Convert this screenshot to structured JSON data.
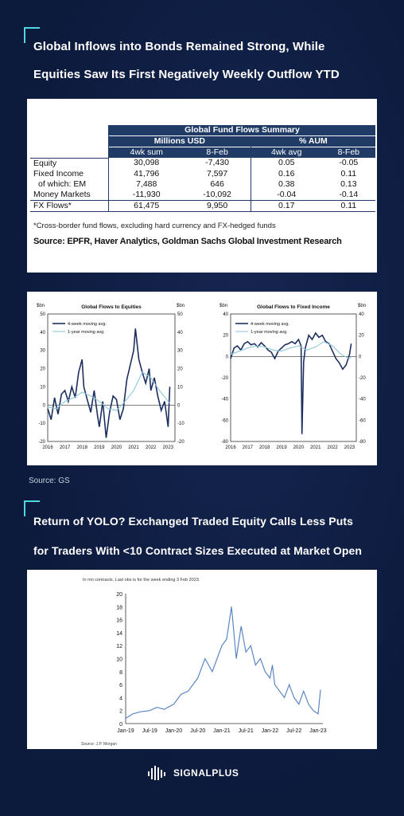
{
  "headline1": {
    "line1": "Global Inflows into Bonds Remained Strong, While",
    "line2": "Equities Saw Its First Negatively Weekly Outflow YTD"
  },
  "table": {
    "title": "Global Fund Flows Summary",
    "group1": "Millions USD",
    "group2": "% AUM",
    "cols": [
      "4wk sum",
      "8-Feb",
      "4wk avg",
      "8-Feb"
    ],
    "rows": [
      {
        "label": "Equity",
        "v": [
          "30,098",
          "-7,430",
          "0.05",
          "-0.05"
        ]
      },
      {
        "label": "Fixed Income",
        "v": [
          "41,796",
          "7,597",
          "0.16",
          "0.11"
        ]
      },
      {
        "label": "of which: EM",
        "v": [
          "7,488",
          "646",
          "0.38",
          "0.13"
        ]
      },
      {
        "label": "Money Markets",
        "v": [
          "-11,930",
          "-10,092",
          "-0.04",
          "-0.14"
        ]
      },
      {
        "label": "FX Flows*",
        "v": [
          "61,475",
          "9,950",
          "0.17",
          "0.11"
        ]
      }
    ],
    "footnote": "*Cross-border fund flows, excluding hard currency and FX-hedged funds",
    "source": "Source: EPFR, Haver Analytics, Goldman Sachs Global Investment Research"
  },
  "source_gs": "Source: GS",
  "headline2": {
    "line1": "Return of YOLO?  Exchanged Traded Equity Calls Less Puts",
    "line2": "for Traders With <10 Contract Sizes Executed at Market Open"
  },
  "logo_text": "SIGNALPLUS",
  "colors": {
    "dark_series": "#1c2f5e",
    "light_series": "#8fc8dc",
    "line_series": "#5b86c4",
    "table_header": "#1f3b66",
    "accent": "#4fd6e0"
  },
  "chart_data": [
    {
      "type": "line",
      "title": "Global Flows to Equities",
      "ylabel_left": "$bn",
      "ylabel_right": "$bn",
      "ylim": [
        -20,
        50
      ],
      "yticks": [
        -20,
        -10,
        0,
        10,
        20,
        30,
        40,
        50
      ],
      "xticks": [
        "2016",
        "2017",
        "2018",
        "2019",
        "2020",
        "2021",
        "2022",
        "2023"
      ],
      "legend": "top-left",
      "series": [
        {
          "name": "4-week moving avg.",
          "x": [
            2016.0,
            2016.2,
            2016.4,
            2016.6,
            2016.8,
            2017.0,
            2017.2,
            2017.4,
            2017.6,
            2017.8,
            2018.0,
            2018.1,
            2018.3,
            2018.5,
            2018.7,
            2018.9,
            2019.0,
            2019.2,
            2019.4,
            2019.6,
            2019.8,
            2020.0,
            2020.2,
            2020.4,
            2020.6,
            2020.8,
            2021.0,
            2021.1,
            2021.3,
            2021.5,
            2021.7,
            2021.9,
            2022.0,
            2022.2,
            2022.4,
            2022.6,
            2022.8,
            2023.0,
            2023.1
          ],
          "y": [
            -2,
            -8,
            4,
            -5,
            6,
            8,
            2,
            10,
            4,
            18,
            25,
            10,
            3,
            -4,
            8,
            -6,
            -12,
            2,
            -18,
            -4,
            5,
            3,
            -8,
            -2,
            14,
            22,
            30,
            42,
            25,
            18,
            12,
            20,
            8,
            15,
            5,
            -3,
            2,
            -12,
            10
          ]
        },
        {
          "name": "1-year moving avg.",
          "x": [
            2016.0,
            2016.5,
            2017.0,
            2017.5,
            2018.0,
            2018.5,
            2019.0,
            2019.5,
            2020.0,
            2020.5,
            2021.0,
            2021.5,
            2022.0,
            2022.5,
            2023.0,
            2023.1
          ],
          "y": [
            -1,
            -2,
            2,
            4,
            7,
            5,
            2,
            -2,
            -3,
            2,
            8,
            18,
            15,
            8,
            2,
            1
          ]
        }
      ]
    },
    {
      "type": "line",
      "title": "Global Flows to Fixed Income",
      "ylabel_left": "$bn",
      "ylabel_right": "$bn",
      "ylim": [
        -80,
        40
      ],
      "yticks": [
        -80,
        -60,
        -40,
        -20,
        0,
        20,
        40
      ],
      "xticks": [
        "2016",
        "2017",
        "2018",
        "2019",
        "2020",
        "2021",
        "2022",
        "2023"
      ],
      "legend": "top-left",
      "series": [
        {
          "name": "4-week moving avg.",
          "x": [
            2016.0,
            2016.2,
            2016.4,
            2016.6,
            2016.8,
            2017.0,
            2017.2,
            2017.4,
            2017.6,
            2017.8,
            2018.0,
            2018.2,
            2018.4,
            2018.6,
            2018.8,
            2019.0,
            2019.2,
            2019.4,
            2019.6,
            2019.8,
            2020.0,
            2020.15,
            2020.2,
            2020.25,
            2020.3,
            2020.4,
            2020.6,
            2020.8,
            2021.0,
            2021.2,
            2021.4,
            2021.6,
            2021.8,
            2022.0,
            2022.2,
            2022.4,
            2022.6,
            2022.8,
            2023.0,
            2023.1
          ],
          "y": [
            -2,
            8,
            10,
            6,
            12,
            14,
            11,
            12,
            9,
            13,
            10,
            6,
            4,
            -2,
            5,
            8,
            11,
            12,
            14,
            12,
            16,
            10,
            -73,
            -40,
            -5,
            8,
            20,
            16,
            22,
            18,
            20,
            14,
            12,
            5,
            -2,
            -6,
            -12,
            -8,
            2,
            12
          ]
        },
        {
          "name": "1-year moving avg.",
          "x": [
            2016.0,
            2016.5,
            2017.0,
            2017.5,
            2018.0,
            2018.5,
            2019.0,
            2019.5,
            2020.0,
            2020.5,
            2021.0,
            2021.5,
            2022.0,
            2022.5,
            2023.0,
            2023.1
          ],
          "y": [
            2,
            5,
            8,
            10,
            9,
            6,
            5,
            8,
            10,
            6,
            9,
            14,
            10,
            2,
            -2,
            0
          ]
        }
      ]
    },
    {
      "type": "line",
      "subtitle": "In mn contracts. Last obs is for the week ending 3 Feb 2023.",
      "source": "Source: J.P. Morgan",
      "ylim": [
        0,
        20
      ],
      "yticks": [
        0,
        2,
        4,
        6,
        8,
        10,
        12,
        14,
        16,
        18,
        20
      ],
      "xticks": [
        "Jan-19",
        "Jul-19",
        "Jan-20",
        "Jul-20",
        "Jan-21",
        "Jul-21",
        "Jan-22",
        "Jul-22",
        "Jan-23"
      ],
      "series": [
        {
          "x": [
            0,
            0.3,
            0.6,
            1,
            1.3,
            1.6,
            2,
            2.3,
            2.6,
            3,
            3.3,
            3.6,
            4,
            4.2,
            4.4,
            4.6,
            4.8,
            5,
            5.2,
            5.4,
            5.6,
            5.8,
            6,
            6.1,
            6.2,
            6.4,
            6.6,
            6.8,
            7,
            7.2,
            7.4,
            7.6,
            7.8,
            8,
            8.1
          ],
          "y": [
            0.8,
            1.5,
            1.8,
            2,
            2.5,
            2.2,
            3,
            4.5,
            5,
            7,
            10,
            8,
            12,
            13,
            18,
            10,
            15,
            11,
            12,
            9,
            10,
            8,
            7,
            9,
            6,
            5,
            4,
            6,
            4,
            3,
            5,
            3,
            2,
            1.5,
            5.2
          ]
        }
      ]
    }
  ]
}
